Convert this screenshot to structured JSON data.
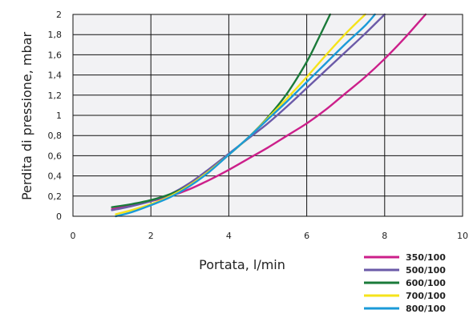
{
  "chart_data": {
    "type": "line",
    "xlabel": "Portata, l/min",
    "ylabel": "Perdita di pressione, mbar",
    "xlim": [
      0,
      10
    ],
    "ylim": [
      0,
      2
    ],
    "x_ticks": [
      "0",
      "2",
      "4",
      "6",
      "8",
      "10"
    ],
    "y_ticks": [
      "0",
      "0,2",
      "0,4",
      "0,6",
      "0,8",
      "1",
      "1,2",
      "1,4",
      "1,6",
      "1,8",
      "2"
    ],
    "grid": true,
    "legend_position": "bottom-right",
    "series": [
      {
        "name": "350/100",
        "color": "#cc1f8a",
        "x": [
          1.0,
          1.5,
          2.0,
          2.5,
          3.0,
          3.5,
          4.0,
          4.5,
          5.0,
          5.5,
          6.0,
          6.5,
          7.0,
          7.5,
          8.0,
          8.5,
          9.05
        ],
        "y": [
          0.07,
          0.11,
          0.15,
          0.2,
          0.27,
          0.36,
          0.46,
          0.57,
          0.68,
          0.8,
          0.92,
          1.06,
          1.22,
          1.38,
          1.56,
          1.76,
          2.0
        ]
      },
      {
        "name": "500/100",
        "color": "#6b5aa8",
        "x": [
          1.0,
          1.5,
          2.0,
          2.5,
          3.0,
          3.5,
          4.0,
          4.5,
          5.0,
          5.5,
          6.0,
          6.5,
          7.0,
          7.5,
          8.0
        ],
        "y": [
          0.06,
          0.1,
          0.15,
          0.22,
          0.33,
          0.47,
          0.62,
          0.77,
          0.92,
          1.09,
          1.27,
          1.45,
          1.63,
          1.81,
          2.0
        ]
      },
      {
        "name": "600/100",
        "color": "#1a7a3a",
        "x": [
          1.0,
          1.5,
          2.0,
          2.5,
          3.0,
          3.5,
          4.0,
          4.5,
          5.0,
          5.5,
          6.0,
          6.3,
          6.6
        ],
        "y": [
          0.09,
          0.12,
          0.16,
          0.22,
          0.31,
          0.45,
          0.61,
          0.78,
          0.98,
          1.22,
          1.53,
          1.76,
          2.0
        ]
      },
      {
        "name": "700/100",
        "color": "#f5e31a",
        "x": [
          1.1,
          1.5,
          2.0,
          2.5,
          3.0,
          3.5,
          4.0,
          4.5,
          5.0,
          5.5,
          6.0,
          6.5,
          7.0,
          7.5
        ],
        "y": [
          0.02,
          0.06,
          0.12,
          0.2,
          0.31,
          0.45,
          0.61,
          0.78,
          0.97,
          1.17,
          1.38,
          1.6,
          1.81,
          2.0
        ]
      },
      {
        "name": "800/100",
        "color": "#1a9ad8",
        "x": [
          1.1,
          1.5,
          2.0,
          2.5,
          3.0,
          3.5,
          4.0,
          4.5,
          5.0,
          5.5,
          6.0,
          6.5,
          7.0,
          7.5,
          7.75
        ],
        "y": [
          0.0,
          0.04,
          0.11,
          0.19,
          0.3,
          0.44,
          0.61,
          0.78,
          0.96,
          1.14,
          1.33,
          1.52,
          1.71,
          1.89,
          2.0
        ]
      }
    ]
  }
}
